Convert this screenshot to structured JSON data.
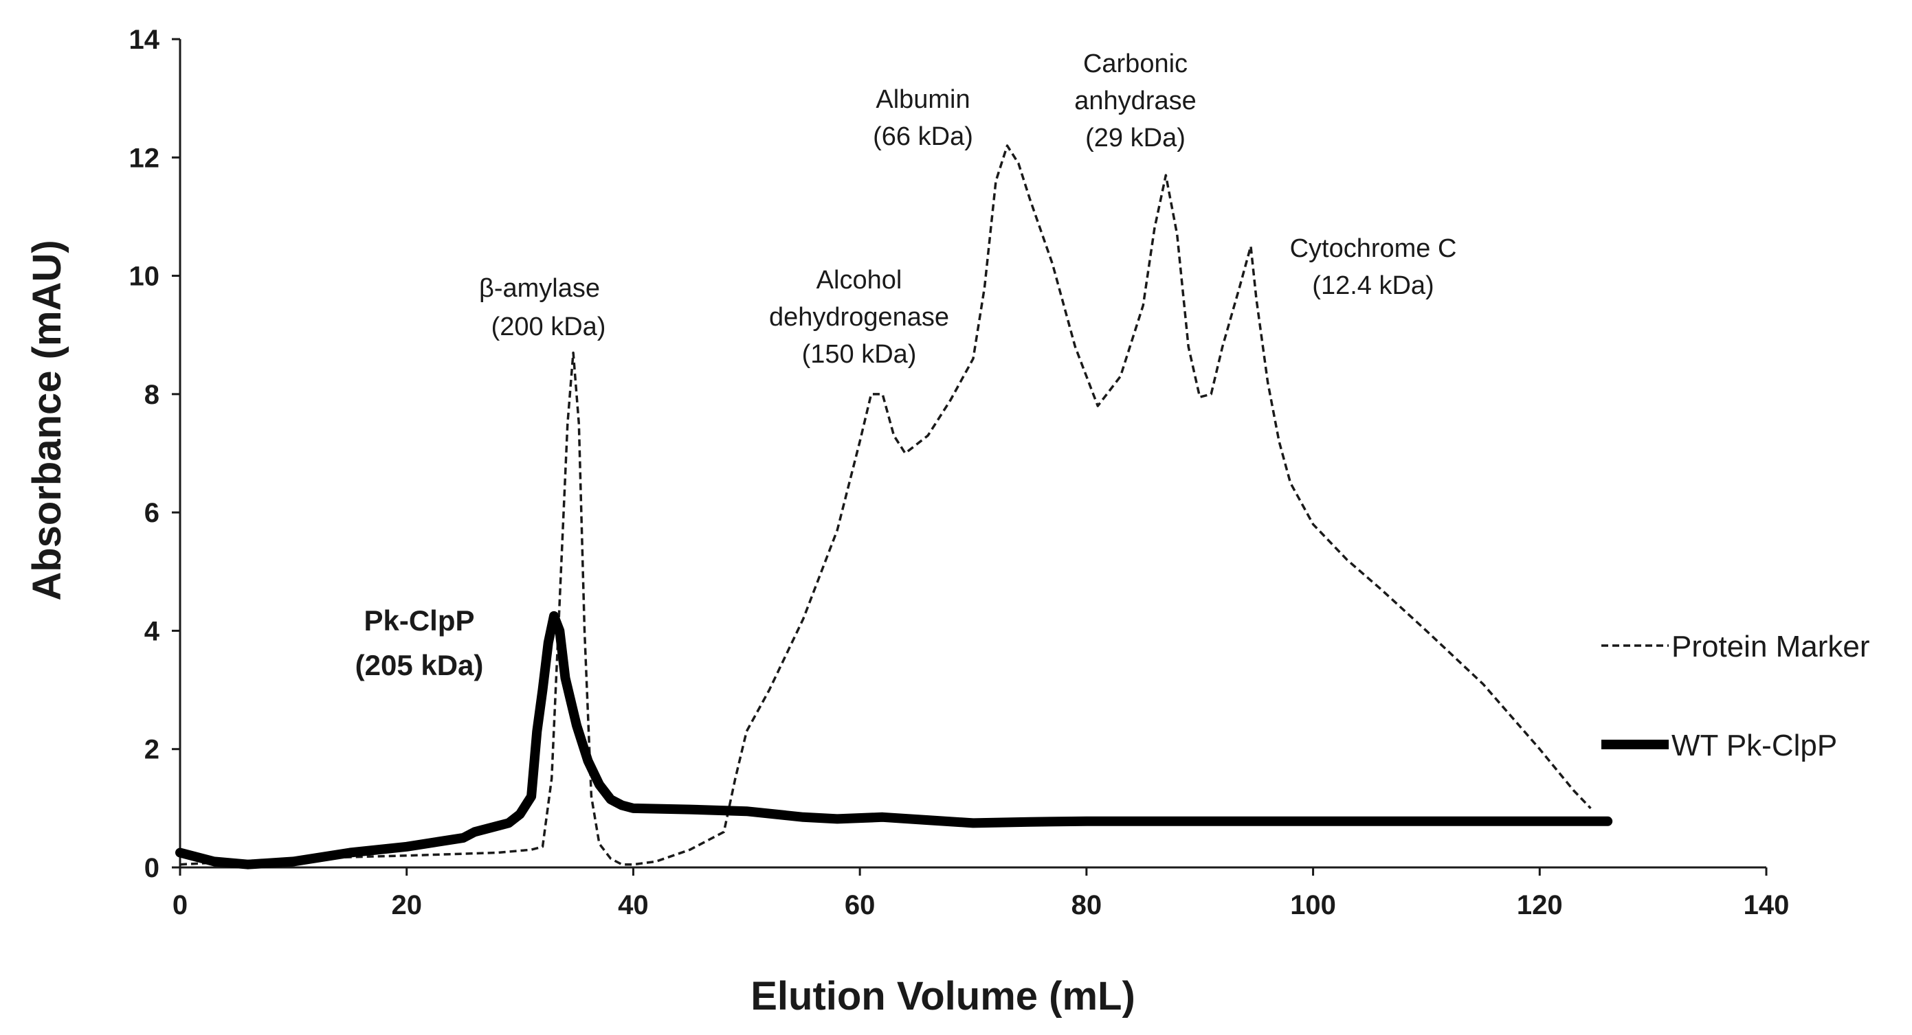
{
  "chart_data": {
    "type": "line",
    "title": "",
    "xlabel": "Elution Volume (mL)",
    "ylabel": "Absorbance (mAU)",
    "xlim": [
      0,
      140
    ],
    "ylim": [
      0,
      14
    ],
    "x_ticks": [
      0,
      20,
      40,
      60,
      80,
      100,
      120,
      140
    ],
    "y_ticks": [
      0,
      2,
      4,
      6,
      8,
      10,
      12,
      14
    ],
    "grid": false,
    "legend_position": "right",
    "series": [
      {
        "name": "Protein Marker",
        "style": "dashed",
        "color": "#1a1a1a",
        "points": [
          [
            0,
            0.05
          ],
          [
            5,
            0.1
          ],
          [
            10,
            0.15
          ],
          [
            20,
            0.2
          ],
          [
            28,
            0.25
          ],
          [
            31,
            0.3
          ],
          [
            32,
            0.35
          ],
          [
            32.8,
            1.5
          ],
          [
            33.5,
            4.5
          ],
          [
            34.2,
            7.5
          ],
          [
            34.7,
            8.7
          ],
          [
            35.2,
            7.5
          ],
          [
            35.7,
            4.0
          ],
          [
            36.3,
            1.2
          ],
          [
            37,
            0.4
          ],
          [
            38,
            0.15
          ],
          [
            39,
            0.05
          ],
          [
            40,
            0.05
          ],
          [
            42,
            0.1
          ],
          [
            45,
            0.3
          ],
          [
            48,
            0.6
          ],
          [
            49,
            1.5
          ],
          [
            50,
            2.3
          ],
          [
            52,
            3.0
          ],
          [
            55,
            4.2
          ],
          [
            58,
            5.7
          ],
          [
            60,
            7.2
          ],
          [
            61,
            8.0
          ],
          [
            62,
            8.0
          ],
          [
            63,
            7.3
          ],
          [
            64,
            7.0
          ],
          [
            66,
            7.3
          ],
          [
            68,
            7.9
          ],
          [
            70,
            8.6
          ],
          [
            71,
            9.8
          ],
          [
            72,
            11.6
          ],
          [
            73,
            12.2
          ],
          [
            74,
            11.9
          ],
          [
            75,
            11.3
          ],
          [
            77,
            10.2
          ],
          [
            79,
            8.8
          ],
          [
            81,
            7.8
          ],
          [
            83,
            8.3
          ],
          [
            85,
            9.5
          ],
          [
            86,
            10.8
          ],
          [
            87,
            11.7
          ],
          [
            88,
            10.7
          ],
          [
            89,
            8.8
          ],
          [
            90,
            7.95
          ],
          [
            91,
            8.0
          ],
          [
            92,
            8.8
          ],
          [
            93.5,
            9.8
          ],
          [
            94.5,
            10.5
          ],
          [
            95,
            9.6
          ],
          [
            96,
            8.2
          ],
          [
            97,
            7.2
          ],
          [
            98,
            6.5
          ],
          [
            100,
            5.8
          ],
          [
            103,
            5.2
          ],
          [
            106,
            4.7
          ],
          [
            110,
            4.0
          ],
          [
            115,
            3.1
          ],
          [
            120,
            2.0
          ],
          [
            123,
            1.3
          ],
          [
            124.5,
            1.0
          ]
        ]
      },
      {
        "name": "WT Pk-ClpP",
        "style": "solid",
        "color": "#000000",
        "points": [
          [
            0,
            0.25
          ],
          [
            3,
            0.1
          ],
          [
            6,
            0.05
          ],
          [
            10,
            0.1
          ],
          [
            15,
            0.25
          ],
          [
            20,
            0.35
          ],
          [
            25,
            0.5
          ],
          [
            26,
            0.6
          ],
          [
            28,
            0.7
          ],
          [
            29,
            0.75
          ],
          [
            30,
            0.9
          ],
          [
            31,
            1.2
          ],
          [
            31.5,
            2.3
          ],
          [
            32,
            3.0
          ],
          [
            32.5,
            3.8
          ],
          [
            33,
            4.25
          ],
          [
            33.5,
            4.0
          ],
          [
            34,
            3.2
          ],
          [
            35,
            2.4
          ],
          [
            36,
            1.8
          ],
          [
            37,
            1.4
          ],
          [
            38,
            1.15
          ],
          [
            39,
            1.05
          ],
          [
            40,
            1.0
          ],
          [
            45,
            0.98
          ],
          [
            50,
            0.95
          ],
          [
            55,
            0.85
          ],
          [
            58,
            0.82
          ],
          [
            62,
            0.85
          ],
          [
            66,
            0.8
          ],
          [
            70,
            0.75
          ],
          [
            75,
            0.77
          ],
          [
            80,
            0.78
          ],
          [
            90,
            0.78
          ],
          [
            100,
            0.78
          ],
          [
            110,
            0.78
          ],
          [
            120,
            0.78
          ],
          [
            126,
            0.78
          ]
        ]
      }
    ],
    "annotations": [
      {
        "lines": [
          "β-amylase",
          "(200 kDa)"
        ]
      },
      {
        "lines": [
          "Alcohol",
          "dehydrogenase",
          "(150 kDa)"
        ]
      },
      {
        "lines": [
          "Albumin",
          "(66 kDa)"
        ]
      },
      {
        "lines": [
          "Carbonic",
          "anhydrase",
          "(29 kDa)"
        ]
      },
      {
        "lines": [
          "Cytochrome C",
          "(12.4 kDa)"
        ]
      },
      {
        "lines": [
          "Pk-ClpP",
          "(205 kDa)"
        ]
      }
    ]
  }
}
